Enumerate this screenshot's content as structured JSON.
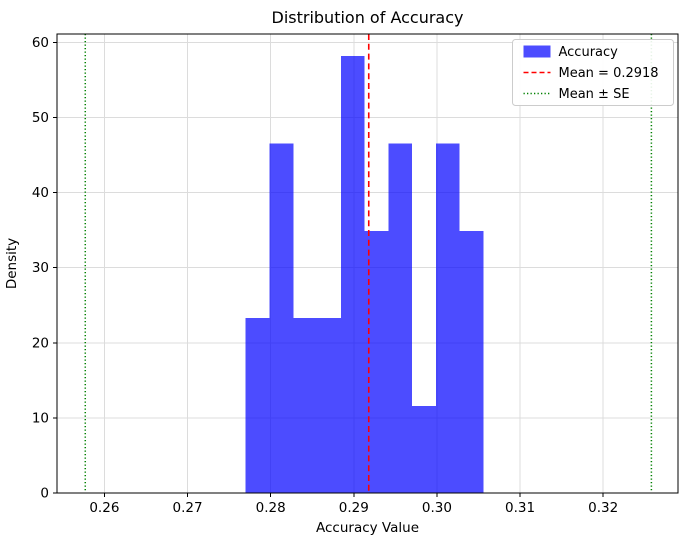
{
  "chart_data": {
    "type": "bar",
    "title": "Distribution of Accuracy",
    "xlabel": "Accuracy Value",
    "ylabel": "Density",
    "xlim": [
      0.2543,
      0.329
    ],
    "ylim": [
      0,
      61.1
    ],
    "xticks": [
      0.26,
      0.27,
      0.28,
      0.29,
      0.3,
      0.31,
      0.32
    ],
    "xtick_labels": [
      "0.26",
      "0.27",
      "0.28",
      "0.29",
      "0.30",
      "0.31",
      "0.32"
    ],
    "yticks": [
      0,
      10,
      20,
      30,
      40,
      50,
      60
    ],
    "ytick_labels": [
      "0",
      "10",
      "20",
      "30",
      "40",
      "50",
      "60"
    ],
    "grid": true,
    "grid_color": "#dcdcdc",
    "histogram": {
      "bin_start": 0.277,
      "bin_width": 0.00286,
      "densities": [
        23.3,
        46.5,
        23.3,
        23.3,
        58.2,
        34.9,
        46.5,
        11.6,
        46.5,
        34.9
      ],
      "bar_color": "#0000ff",
      "bar_opacity": 0.7
    },
    "mean_line": {
      "value": 0.2918,
      "color": "#ff0000",
      "style": "dashed",
      "label": "Mean = 0.2918"
    },
    "se_lines": {
      "values": [
        0.2577,
        0.3258
      ],
      "color": "#008000",
      "style": "dotted",
      "label": "Mean ± SE"
    },
    "legend": {
      "position": "upper-right",
      "entries": [
        {
          "swatch": "patch",
          "color": "#0000ff",
          "opacity": 0.7,
          "label": "Accuracy"
        },
        {
          "swatch": "dashed-line",
          "color": "#ff0000",
          "opacity": 1.0,
          "label": "Mean = 0.2918"
        },
        {
          "swatch": "dotted-line",
          "color": "#008000",
          "opacity": 1.0,
          "label": "Mean ± SE"
        }
      ]
    }
  }
}
